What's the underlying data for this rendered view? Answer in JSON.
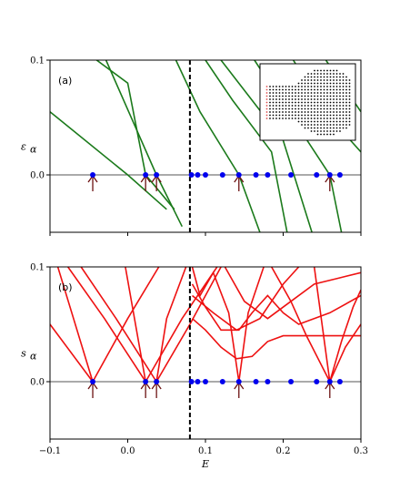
{
  "chart_data": [
    {
      "type": "line",
      "panel_label": "(a)",
      "ylabel": "ε",
      "ylabel_sub": "α",
      "xlim": [
        -0.1,
        0.3
      ],
      "ylim": [
        -0.05,
        0.1
      ],
      "yticks": [
        {
          "value": 0.0,
          "label": "0.0"
        },
        {
          "value": 0.1,
          "label": "0.1"
        }
      ],
      "show_x_tick_labels": false,
      "vline_x": 0.08,
      "hline_y": 0.0,
      "line_color": "#1b7a1b",
      "series": [
        {
          "points": [
            [
              -0.1,
              0.055
            ],
            [
              0.0,
              0.0
            ],
            [
              0.05,
              -0.03
            ]
          ]
        },
        {
          "points": [
            [
              -0.05,
              0.105
            ],
            [
              0.0,
              0.08
            ],
            [
              0.023,
              0.0
            ],
            [
              0.06,
              -0.03
            ]
          ]
        },
        {
          "points": [
            [
              -0.028,
              0.1
            ],
            [
              0.037,
              0.0
            ],
            [
              0.07,
              -0.045
            ]
          ]
        },
        {
          "points": [
            [
              0.062,
              0.1
            ],
            [
              0.093,
              0.055
            ],
            [
              0.143,
              0.0
            ],
            [
              0.17,
              -0.05
            ]
          ]
        },
        {
          "points": [
            [
              0.1,
              0.1
            ],
            [
              0.135,
              0.065
            ],
            [
              0.185,
              0.02
            ],
            [
              0.205,
              -0.05
            ]
          ]
        },
        {
          "points": [
            [
              0.12,
              0.1
            ],
            [
              0.2,
              0.03
            ],
            [
              0.237,
              -0.05
            ]
          ]
        },
        {
          "points": [
            [
              0.163,
              0.1
            ],
            [
              0.26,
              0.0
            ],
            [
              0.275,
              -0.05
            ]
          ]
        },
        {
          "points": [
            [
              0.213,
              0.1
            ],
            [
              0.26,
              0.05
            ],
            [
              0.3,
              0.02
            ]
          ]
        },
        {
          "points": [
            [
              0.255,
              0.1
            ],
            [
              0.3,
              0.055
            ]
          ]
        }
      ],
      "zero_points": [
        -0.045,
        0.023,
        0.037,
        0.082,
        0.09,
        0.1,
        0.122,
        0.143,
        0.165,
        0.18,
        0.21,
        0.243,
        0.26,
        0.273
      ],
      "arrows": [
        -0.045,
        0.023,
        0.037,
        0.143,
        0.26
      ],
      "arrow_color": "#6b1010",
      "point_color": "#0000ee",
      "inset": {
        "description_free": true
      }
    },
    {
      "type": "line",
      "panel_label": "(b)",
      "ylabel": "s",
      "ylabel_sub": "α",
      "xlabel": "E",
      "xlim": [
        -0.1,
        0.3
      ],
      "ylim": [
        -0.05,
        0.1
      ],
      "xticks": [
        {
          "value": -0.1,
          "label": "−0.1"
        },
        {
          "value": 0.0,
          "label": "0.0"
        },
        {
          "value": 0.1,
          "label": "0.1"
        },
        {
          "value": 0.2,
          "label": "0.2"
        },
        {
          "value": 0.3,
          "label": "0.3"
        }
      ],
      "yticks": [
        {
          "value": 0.0,
          "label": "0.0"
        },
        {
          "value": 0.1,
          "label": "0.1"
        }
      ],
      "vline_x": 0.08,
      "hline_y": 0.0,
      "line_color": "#ee1111",
      "series": [
        {
          "points": [
            [
              -0.1,
              0.05
            ],
            [
              -0.045,
              0.0
            ],
            [
              0.0,
              0.055
            ],
            [
              0.04,
              0.1
            ]
          ]
        },
        {
          "points": [
            [
              -0.09,
              0.1
            ],
            [
              -0.045,
              0.0
            ]
          ]
        },
        {
          "points": [
            [
              -0.077,
              0.1
            ],
            [
              -0.03,
              0.055
            ],
            [
              0.023,
              0.0
            ],
            [
              0.07,
              0.055
            ],
            [
              0.115,
              0.1
            ]
          ]
        },
        {
          "points": [
            [
              -0.06,
              0.1
            ],
            [
              -0.015,
              0.055
            ],
            [
              0.037,
              0.0
            ],
            [
              0.08,
              0.05
            ],
            [
              0.12,
              0.1
            ]
          ]
        },
        {
          "points": [
            [
              -0.003,
              0.1
            ],
            [
              0.023,
              0.0
            ]
          ]
        },
        {
          "points": [
            [
              0.037,
              0.0
            ],
            [
              0.05,
              0.055
            ],
            [
              0.075,
              0.1
            ]
          ]
        },
        {
          "points": [
            [
              0.083,
              0.1
            ],
            [
              0.093,
              0.075
            ],
            [
              0.11,
              0.095
            ],
            [
              0.13,
              0.06
            ],
            [
              0.143,
              0.0
            ],
            [
              0.155,
              0.06
            ],
            [
              0.175,
              0.1
            ]
          ]
        },
        {
          "points": [
            [
              0.083,
              0.085
            ],
            [
              0.1,
              0.065
            ],
            [
              0.12,
              0.045
            ],
            [
              0.143,
              0.045
            ],
            [
              0.16,
              0.06
            ],
            [
              0.18,
              0.075
            ],
            [
              0.2,
              0.06
            ],
            [
              0.22,
              0.05
            ],
            [
              0.26,
              0.06
            ],
            [
              0.3,
              0.075
            ]
          ]
        },
        {
          "points": [
            [
              0.083,
              0.055
            ],
            [
              0.1,
              0.045
            ],
            [
              0.12,
              0.03
            ],
            [
              0.14,
              0.02
            ],
            [
              0.16,
              0.022
            ],
            [
              0.18,
              0.035
            ],
            [
              0.2,
              0.04
            ],
            [
              0.24,
              0.04
            ],
            [
              0.3,
              0.04
            ]
          ]
        },
        {
          "points": [
            [
              0.083,
              0.075
            ],
            [
              0.11,
              0.06
            ],
            [
              0.14,
              0.045
            ],
            [
              0.17,
              0.055
            ],
            [
              0.2,
              0.085
            ],
            [
              0.22,
              0.1
            ]
          ]
        },
        {
          "points": [
            [
              0.185,
              0.1
            ],
            [
              0.21,
              0.07
            ],
            [
              0.23,
              0.04
            ],
            [
              0.26,
              0.0
            ],
            [
              0.28,
              0.03
            ],
            [
              0.3,
              0.05
            ]
          ]
        },
        {
          "points": [
            [
              0.24,
              0.1
            ],
            [
              0.26,
              0.0
            ]
          ]
        },
        {
          "points": [
            [
              0.26,
              0.0
            ],
            [
              0.275,
              0.035
            ],
            [
              0.29,
              0.065
            ],
            [
              0.3,
              0.08
            ]
          ]
        },
        {
          "points": [
            [
              0.125,
              0.1
            ],
            [
              0.15,
              0.07
            ],
            [
              0.18,
              0.055
            ],
            [
              0.21,
              0.07
            ],
            [
              0.24,
              0.085
            ],
            [
              0.27,
              0.09
            ],
            [
              0.3,
              0.095
            ]
          ]
        }
      ],
      "zero_points": [
        -0.045,
        0.023,
        0.037,
        0.082,
        0.09,
        0.1,
        0.122,
        0.143,
        0.165,
        0.18,
        0.21,
        0.243,
        0.26,
        0.273
      ],
      "arrows": [
        -0.045,
        0.023,
        0.037,
        0.143,
        0.26
      ],
      "arrow_color": "#6b1010",
      "point_color": "#0000ee"
    }
  ]
}
